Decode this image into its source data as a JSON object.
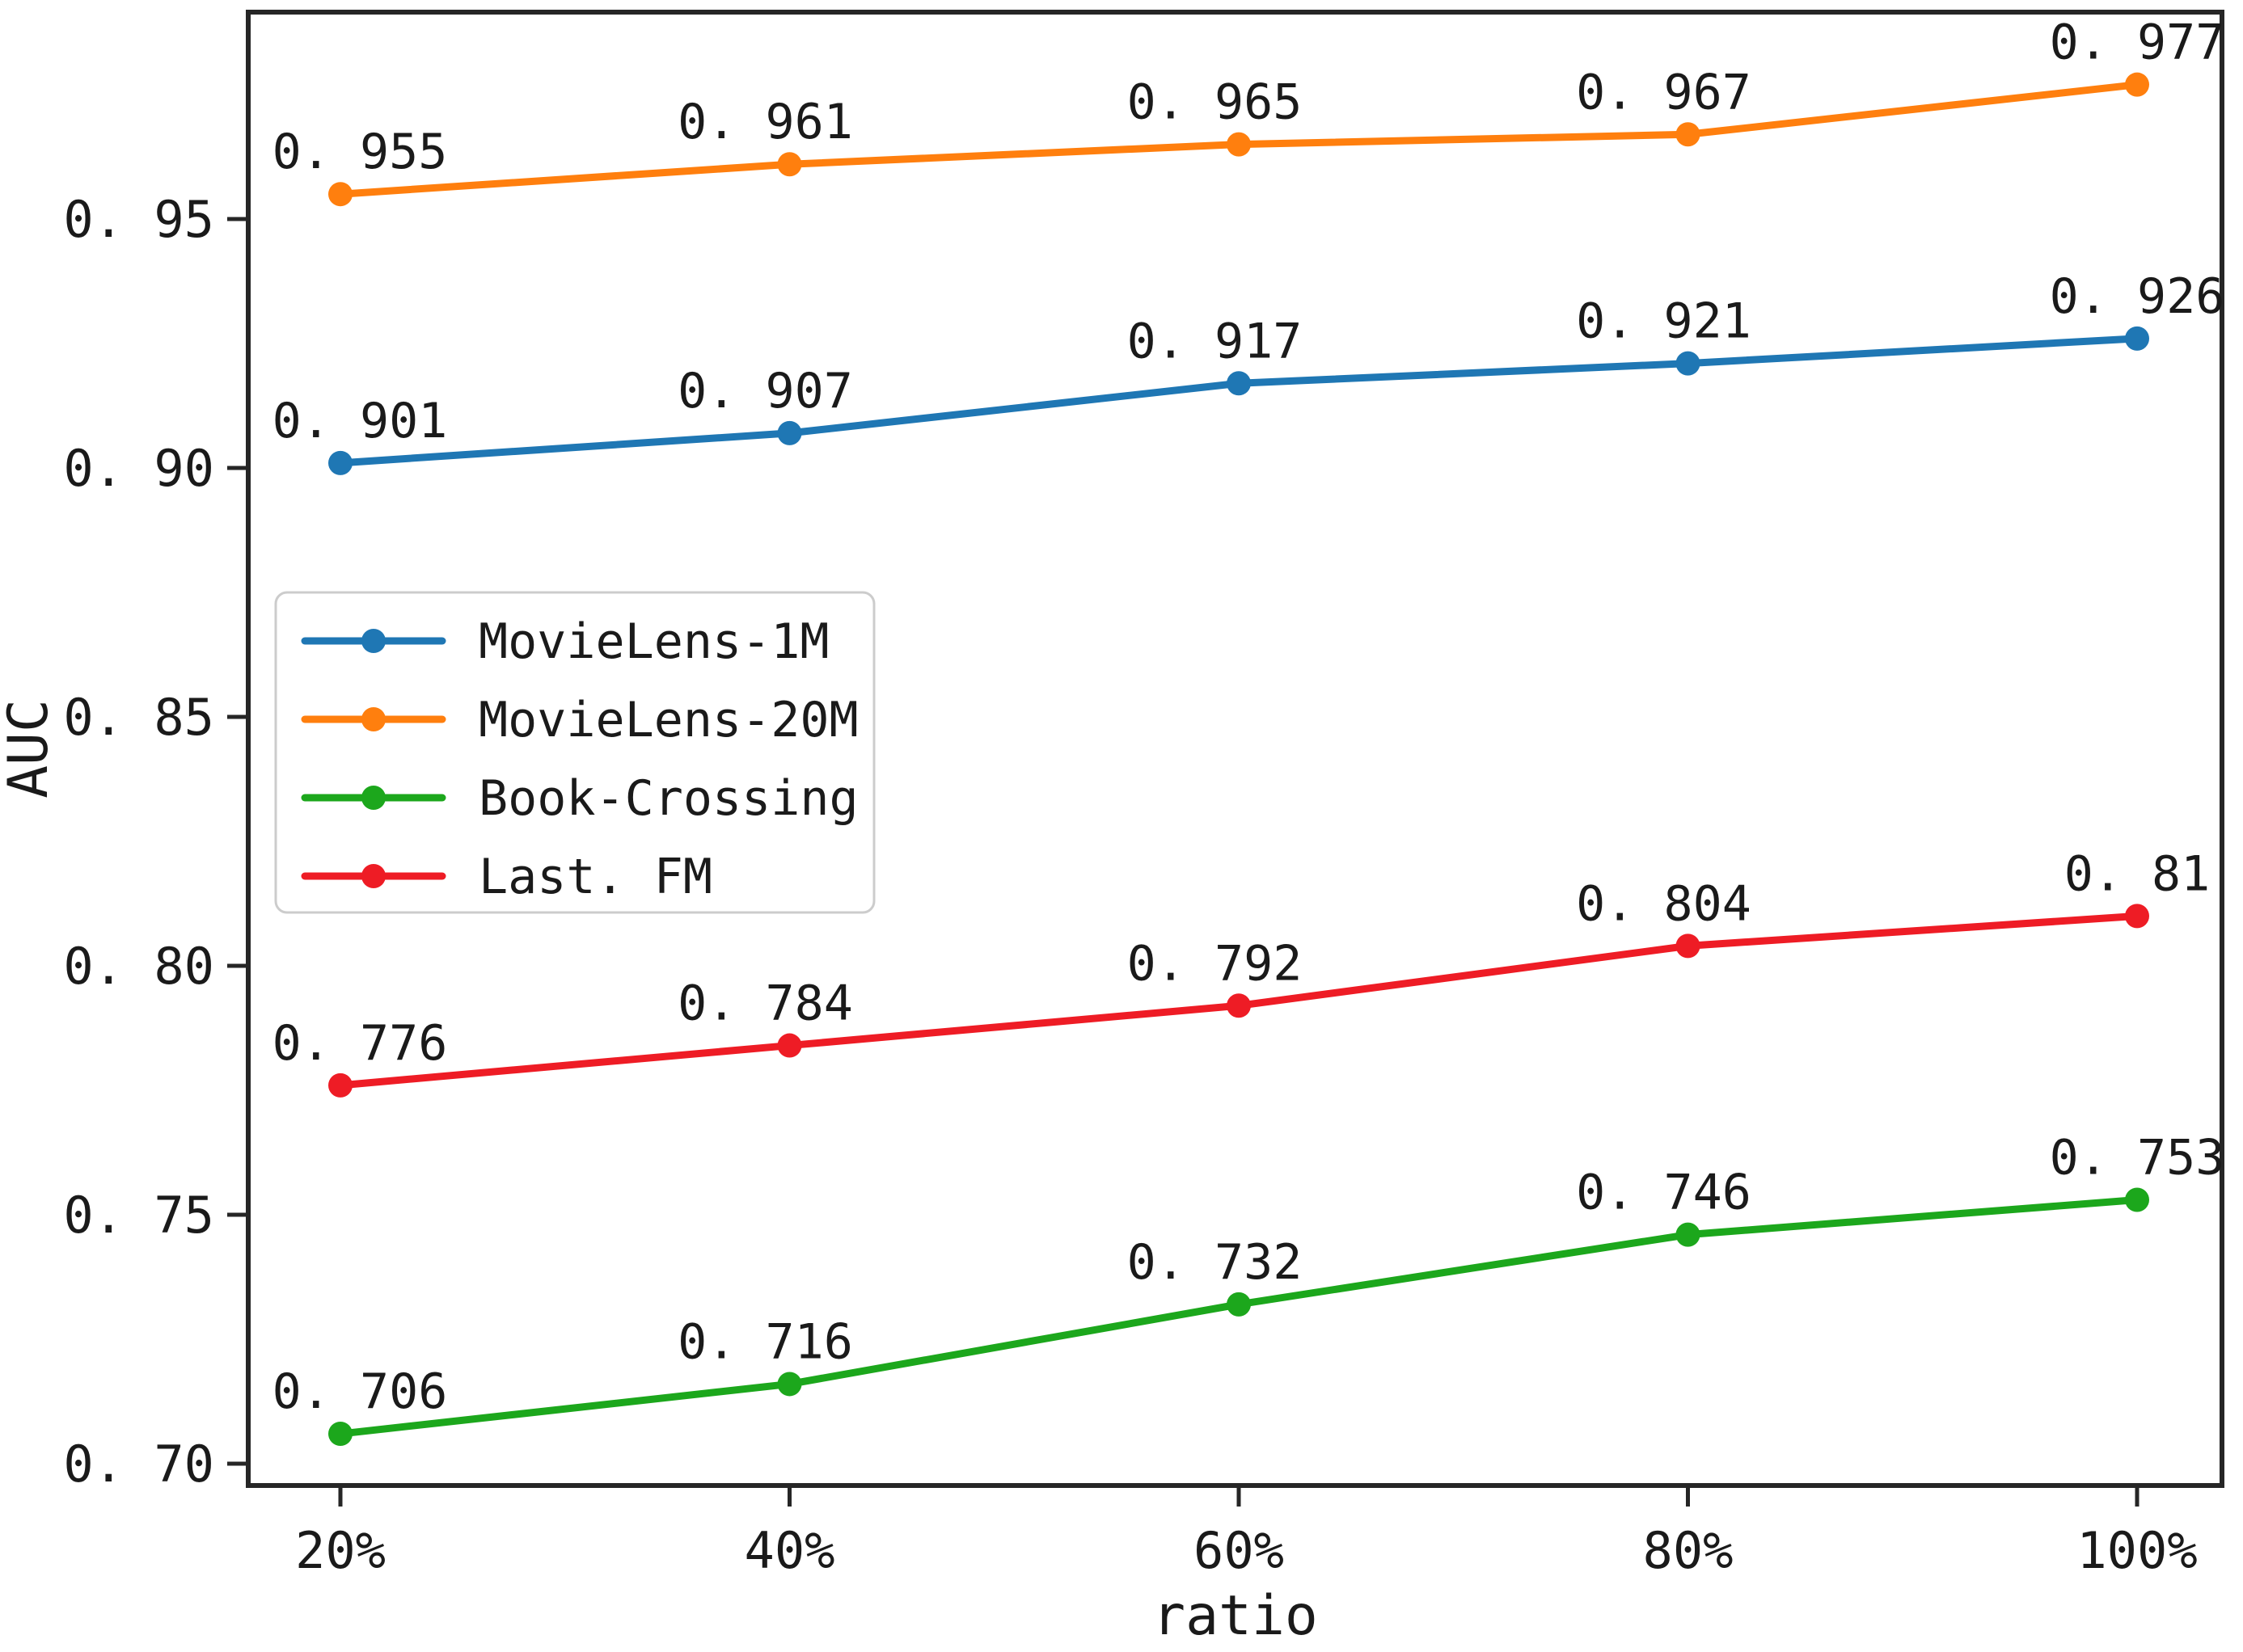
{
  "chart_data": {
    "type": "line",
    "title": "",
    "xlabel": "ratio",
    "ylabel": "AUC",
    "categories": [
      "20%",
      "40%",
      "60%",
      "80%",
      "100%"
    ],
    "x_values": [
      0.2,
      0.4,
      0.6,
      0.8,
      1.0
    ],
    "y_ticks": [
      0.95,
      0.9,
      0.85,
      0.8,
      0.75,
      0.7
    ],
    "y_tick_labels": [
      "0. 95",
      "0. 90",
      "0. 85",
      "0. 80",
      "0. 75",
      "0. 70"
    ],
    "ylim": [
      0.696,
      0.992
    ],
    "grid": false,
    "legend_position": "center-left",
    "background": "#ffffff",
    "series": [
      {
        "name": "MovieLens-1M",
        "legend_label": "MovieLens-1M",
        "color": "#1f77b4",
        "values": [
          0.901,
          0.907,
          0.917,
          0.921,
          0.926
        ],
        "point_labels": [
          "0. 901",
          "0. 907",
          "0. 917",
          "0. 921",
          "0. 926"
        ]
      },
      {
        "name": "MovieLens-20M",
        "legend_label": "MovieLens-20M",
        "color": "#ff7f0e",
        "values": [
          0.955,
          0.961,
          0.965,
          0.967,
          0.977
        ],
        "point_labels": [
          "0. 955",
          "0. 961",
          "0. 965",
          "0. 967",
          "0. 977"
        ]
      },
      {
        "name": "Book-Crossing",
        "legend_label": "Book-Crossing",
        "color": "#1ca71c",
        "values": [
          0.706,
          0.716,
          0.732,
          0.746,
          0.753
        ],
        "point_labels": [
          "0. 706",
          "0. 716",
          "0. 732",
          "0. 746",
          "0. 753"
        ]
      },
      {
        "name": "Last.FM",
        "legend_label": "Last. FM",
        "color": "#ee1c25",
        "values": [
          0.776,
          0.784,
          0.792,
          0.804,
          0.81
        ],
        "point_labels": [
          "0. 776",
          "0. 784",
          "0. 792",
          "0. 804",
          "0. 81"
        ]
      }
    ]
  },
  "colors": {
    "frame": "#262626",
    "tick": "#262626",
    "text": "#1a1a1a",
    "legend_border": "#cccccc",
    "legend_fill": "#ffffff"
  }
}
